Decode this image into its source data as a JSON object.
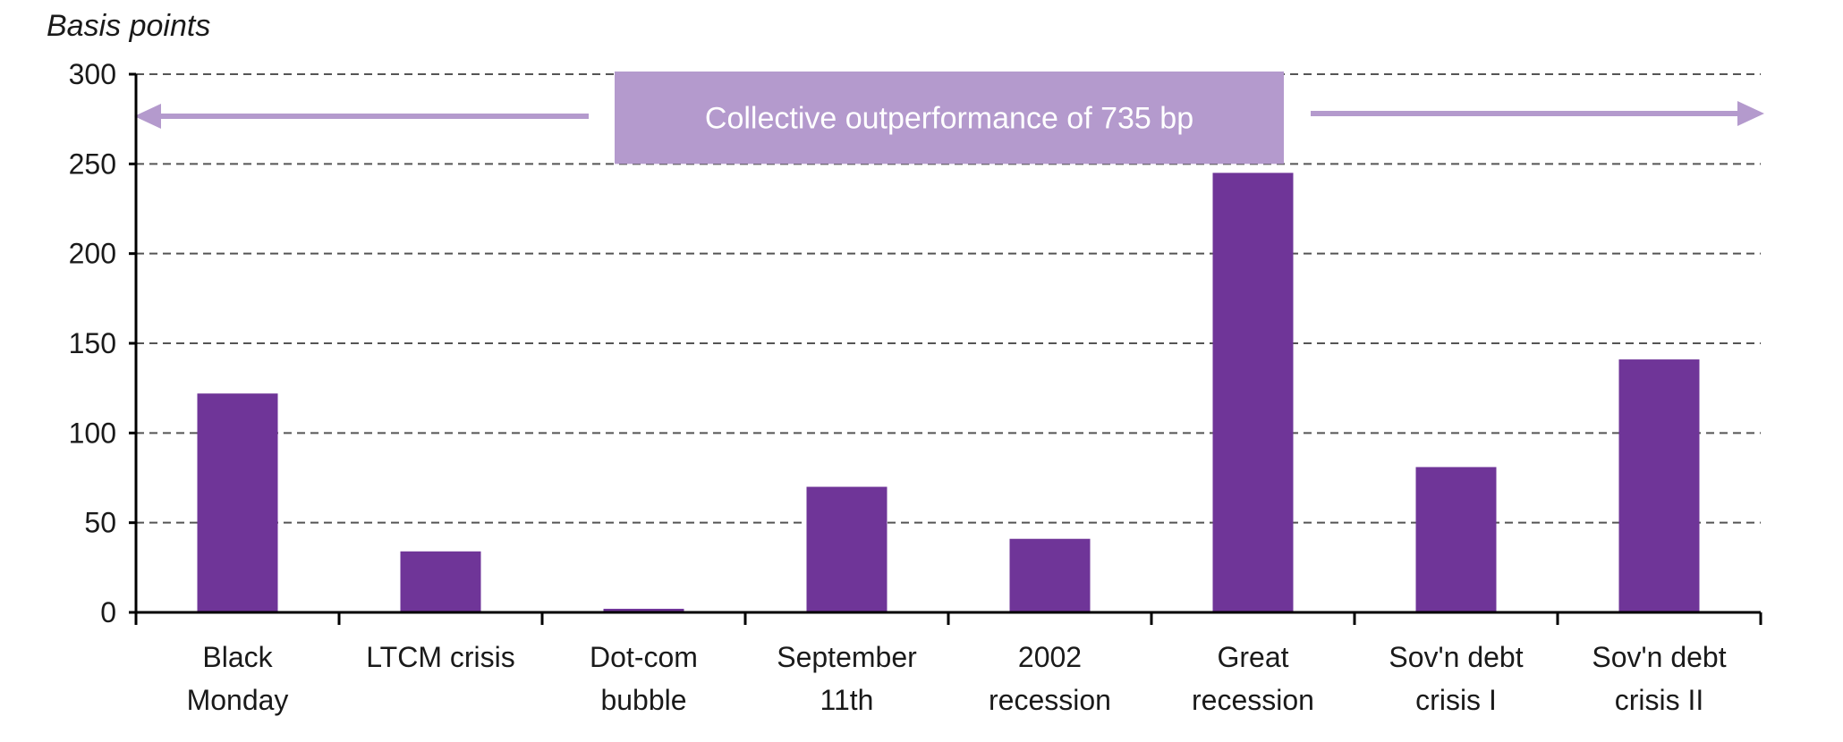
{
  "chart_data": {
    "type": "bar",
    "ylabel": "Basis points",
    "xlabel": "",
    "ylim": [
      0,
      300
    ],
    "yticks": [
      0,
      50,
      100,
      150,
      200,
      250,
      300
    ],
    "grid": "horizontal-dashed",
    "categories": [
      [
        "Black",
        "Monday"
      ],
      [
        "LTCM crisis"
      ],
      [
        "Dot-com",
        "bubble"
      ],
      [
        "September",
        "11th"
      ],
      [
        "2002",
        "recession"
      ],
      [
        "Great",
        "recession"
      ],
      [
        "Sov'n debt",
        "crisis I"
      ],
      [
        "Sov'n debt",
        "crisis II"
      ]
    ],
    "values": [
      122,
      34,
      2,
      70,
      41,
      245,
      81,
      141
    ],
    "annotation": "Collective outperformance of 735 bp",
    "colors": {
      "bar": "#6f3598",
      "banner": "#b49acd",
      "arrow": "#b49acd",
      "grid": "#555555",
      "axis": "#000000"
    }
  }
}
